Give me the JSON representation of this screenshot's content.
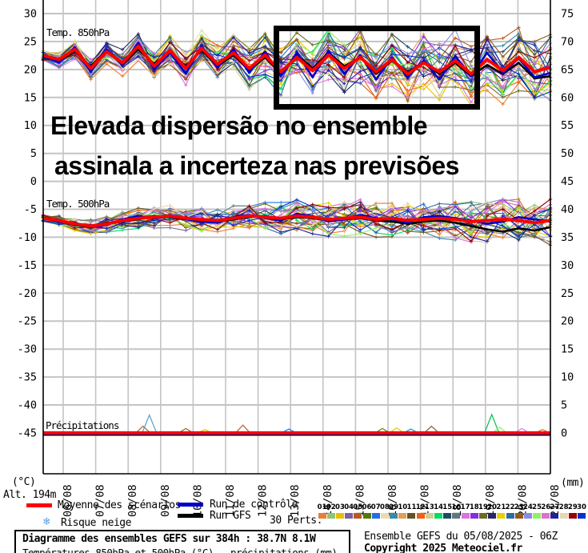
{
  "panels_labels": {
    "t850": "Temp. 850hPa",
    "t500": "Temp. 500hPa",
    "precip": "Précipitations"
  },
  "annotation": {
    "line1": "Elevada dispersão no ensemble",
    "line2": "assinala a incerteza nas previsões"
  },
  "axes": {
    "left_unit": "(°C)",
    "right_unit": "(mm)",
    "alt_label": "Alt. 194m",
    "left_ticks": [
      "30",
      "25",
      "20",
      "15",
      "10",
      "5",
      "0",
      "-5",
      "-10",
      "-15",
      "-20",
      "-25",
      "-30",
      "-35",
      "-40",
      "-45"
    ],
    "right_ticks": [
      "75",
      "70",
      "65",
      "60",
      "55",
      "50",
      "45",
      "40",
      "35",
      "30",
      "25",
      "20",
      "15",
      "10",
      "5",
      "0"
    ],
    "x_labels": [
      "06/08",
      "07/08",
      "08/08",
      "09/08",
      "10/08",
      "11/08",
      "12/08",
      "13/08",
      "14/08",
      "15/08",
      "16/08",
      "17/08",
      "18/08",
      "19/08",
      "20/08",
      "21/08"
    ]
  },
  "legend": {
    "mean_label": "Moyenne des scénarios",
    "control_label": "Run de contrôle",
    "gfs_label": "Run GFS",
    "perts_label": "30 Perts.",
    "snow_label": "Risque neige",
    "snow_icon_glyph": "❄"
  },
  "footer": {
    "left_title": "Diagramme des ensembles GEFS sur 384h : 38.7N 8.1W",
    "left_sub": "Températures 850hPa et 500hPa (°C) , précipitations (mm)",
    "right_line1": "Ensemble GEFS du 05/08/2025 - 06Z",
    "right_line2": "Copyright 2025 Meteociel.fr"
  },
  "colors": {
    "mean": "#FF0000",
    "control": "#0000CC",
    "gfs": "#000000",
    "grid": "#C4C4C4",
    "annotation": "#000000",
    "snow_icon": "#5AA0E0"
  },
  "pert_numbers": [
    "01",
    "02",
    "03",
    "04",
    "05",
    "06",
    "07",
    "08",
    "09",
    "10",
    "11",
    "12",
    "13",
    "14",
    "15",
    "16",
    "17",
    "18",
    "19",
    "20",
    "21",
    "22",
    "23",
    "24",
    "25",
    "26",
    "27",
    "28",
    "29",
    "30"
  ],
  "pert_colors": [
    "#ED7D31",
    "#90C470",
    "#E8C000",
    "#7D5FA0",
    "#B85A1E",
    "#557A00",
    "#2070E8",
    "#EADCB0",
    "#3A89A8",
    "#DFA057",
    "#615427",
    "#F26011",
    "#D6C992",
    "#00DD5E",
    "#1F4A68",
    "#607880",
    "#E070E0",
    "#8A2BE2",
    "#6E6B20",
    "#262668",
    "#E8D000",
    "#2A6E9E",
    "#92591A",
    "#8A8AE0",
    "#90F060",
    "#E070D0",
    "#2020A0",
    "#E8D8B0",
    "#990000",
    "#0033CC"
  ],
  "chart_data": {
    "type": "line",
    "title": "Diagramme des ensembles GEFS sur 384h : 38.7N 8.1W",
    "subtitle": "Températures 850hPa et 500hPa (°C) , précipitations (mm)",
    "run": "Ensemble GEFS du 05/08/2025 - 06Z",
    "location": "38.7N 8.1W  Alt. 194m",
    "x_labels": [
      "06/08",
      "07/08",
      "08/08",
      "09/08",
      "10/08",
      "11/08",
      "12/08",
      "13/08",
      "14/08",
      "15/08",
      "16/08",
      "17/08",
      "18/08",
      "19/08",
      "20/08",
      "21/08"
    ],
    "points_per_series": 33,
    "point_interval_hours": 12,
    "ylim_left_celsius": [
      -45,
      30
    ],
    "ylim_right_mm": [
      0,
      75
    ],
    "grid": true,
    "members_count": 30,
    "panels": [
      {
        "id": "t850",
        "label": "Temp. 850hPa",
        "unit": "°C",
        "mean": [
          22.5,
          21.8,
          23.6,
          20.2,
          23.2,
          21.2,
          24.2,
          20.6,
          23.4,
          20.2,
          23.8,
          21.0,
          23.0,
          20.2,
          22.6,
          19.6,
          22.2,
          19.8,
          22.6,
          20.2,
          22.2,
          19.6,
          21.8,
          19.2,
          21.2,
          19.6,
          21.6,
          19.2,
          21.8,
          19.8,
          22.2,
          19.6,
          20.4
        ],
        "control": [
          22.4,
          21.2,
          24.0,
          19.6,
          23.6,
          20.8,
          24.8,
          20.0,
          23.0,
          19.2,
          24.2,
          20.4,
          23.6,
          19.4,
          23.2,
          18.8,
          23.0,
          18.6,
          23.4,
          19.2,
          22.6,
          18.2,
          22.2,
          18.6,
          21.6,
          18.2,
          22.4,
          18.8,
          23.0,
          19.4,
          22.0,
          18.6,
          19.4
        ],
        "gfs": [
          22.2,
          21.6,
          23.2,
          20.6,
          23.4,
          20.8,
          23.6,
          21.0,
          23.2,
          20.6,
          23.4,
          20.6,
          22.6,
          19.8,
          22.2,
          19.2,
          22.6,
          20.2,
          23.0,
          20.6,
          22.2,
          19.2,
          21.6,
          19.6,
          21.2,
          19.2,
          21.2,
          18.8,
          20.8,
          19.2,
          21.2,
          18.4,
          18.8
        ],
        "spread": [
          1.2,
          1.5,
          1.8,
          2.0,
          2.2,
          2.4,
          2.6,
          2.8,
          3.0,
          3.1,
          3.2,
          3.4,
          3.6,
          3.8,
          4.0,
          4.2,
          4.4,
          4.6,
          4.8,
          5.0,
          5.0,
          5.2,
          5.2,
          5.4,
          5.4,
          5.6,
          5.6,
          5.8,
          5.8,
          6.0,
          6.0,
          6.2,
          6.5
        ]
      },
      {
        "id": "t500",
        "label": "Temp. 500hPa",
        "unit": "°C",
        "mean": [
          -6.6,
          -7.0,
          -7.6,
          -8.0,
          -7.6,
          -7.0,
          -6.6,
          -6.4,
          -6.2,
          -6.6,
          -6.8,
          -7.0,
          -6.6,
          -6.2,
          -6.4,
          -6.6,
          -6.2,
          -6.4,
          -6.8,
          -6.6,
          -6.4,
          -6.8,
          -6.6,
          -7.0,
          -6.8,
          -6.6,
          -6.8,
          -7.2,
          -7.0,
          -6.8,
          -7.0,
          -7.4,
          -7.0
        ],
        "control": [
          -6.6,
          -7.2,
          -7.4,
          -8.2,
          -7.8,
          -6.8,
          -6.2,
          -6.6,
          -6.0,
          -6.8,
          -7.2,
          -7.4,
          -6.4,
          -6.0,
          -6.6,
          -7.0,
          -5.8,
          -6.2,
          -7.2,
          -6.8,
          -6.0,
          -6.6,
          -6.8,
          -7.4,
          -6.4,
          -6.2,
          -6.6,
          -7.0,
          -7.6,
          -7.2,
          -6.4,
          -6.8,
          -7.2
        ],
        "gfs": [
          -6.5,
          -7.0,
          -7.8,
          -8.2,
          -7.4,
          -7.2,
          -6.8,
          -6.2,
          -6.4,
          -6.8,
          -7.0,
          -7.2,
          -6.8,
          -6.4,
          -6.2,
          -6.8,
          -6.4,
          -6.6,
          -7.0,
          -6.8,
          -6.6,
          -7.0,
          -7.2,
          -7.6,
          -7.2,
          -7.0,
          -7.4,
          -8.0,
          -8.6,
          -9.0,
          -8.4,
          -8.8,
          -8.2
        ],
        "spread": [
          0.8,
          1.0,
          1.2,
          1.4,
          1.5,
          1.7,
          1.8,
          2.0,
          2.1,
          2.2,
          2.3,
          2.4,
          2.5,
          2.6,
          2.7,
          2.8,
          2.9,
          3.0,
          3.1,
          3.2,
          3.2,
          3.3,
          3.4,
          3.5,
          3.5,
          3.6,
          3.7,
          3.8,
          3.9,
          4.0,
          4.2,
          4.4,
          4.6
        ]
      },
      {
        "id": "precip",
        "label": "Précipitations",
        "unit": "mm",
        "mean_mm": 0,
        "member_spikes": [
          {
            "pos": 6.3,
            "mm": 1.2,
            "color": "#B85A1E"
          },
          {
            "pos": 6.7,
            "mm": 3.2,
            "color": "#55A0CC"
          },
          {
            "pos": 9.0,
            "mm": 0.8,
            "color": "#92591A"
          },
          {
            "pos": 10.2,
            "mm": 0.6,
            "color": "#E8C000"
          },
          {
            "pos": 12.6,
            "mm": 1.4,
            "color": "#B85A1E"
          },
          {
            "pos": 15.5,
            "mm": 0.7,
            "color": "#2070E8"
          },
          {
            "pos": 21.4,
            "mm": 0.8,
            "color": "#557A00"
          },
          {
            "pos": 22.3,
            "mm": 0.9,
            "color": "#E8C000"
          },
          {
            "pos": 23.2,
            "mm": 0.7,
            "color": "#3A89A8"
          },
          {
            "pos": 24.5,
            "mm": 1.2,
            "color": "#92591A"
          },
          {
            "pos": 28.3,
            "mm": 3.3,
            "color": "#00C050"
          },
          {
            "pos": 28.8,
            "mm": 1.0,
            "color": "#90F060"
          },
          {
            "pos": 30.2,
            "mm": 0.8,
            "color": "#E070E0"
          },
          {
            "pos": 31.5,
            "mm": 0.6,
            "color": "#F26011"
          }
        ]
      }
    ]
  }
}
